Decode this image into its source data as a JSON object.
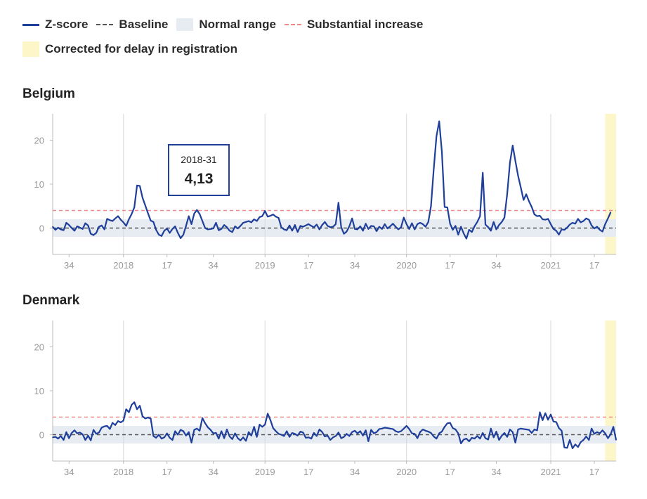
{
  "legend": {
    "zscore": "Z-score",
    "baseline": "Baseline",
    "normal_range": "Normal range",
    "substantial_increase": "Substantial increase",
    "corrected": "Corrected for delay in registration"
  },
  "colors": {
    "zscore": "#1f3f9b",
    "baseline": "#555555",
    "normal_range": "#e7ecf2",
    "substantial": "#ef8a8a",
    "corrected": "#fdf6c8",
    "grid": "#d9d9d9",
    "axis_text": "#999999"
  },
  "tooltip": {
    "label": "2018-31",
    "value": "4,13"
  },
  "chart_data": [
    {
      "type": "line",
      "title": "Belgium",
      "x_unit": "week index (week 1 = 2017-W28)",
      "x_ticks": [
        {
          "week": 7,
          "label": "34"
        },
        {
          "week": 27,
          "label": "2018"
        },
        {
          "week": 43,
          "label": "17"
        },
        {
          "week": 60,
          "label": "34"
        },
        {
          "week": 79,
          "label": "2019"
        },
        {
          "week": 95,
          "label": "17"
        },
        {
          "week": 112,
          "label": "34"
        },
        {
          "week": 131,
          "label": "2020"
        },
        {
          "week": 147,
          "label": "17"
        },
        {
          "week": 164,
          "label": "34"
        },
        {
          "week": 184,
          "label": "2021"
        },
        {
          "week": 200,
          "label": "17"
        }
      ],
      "y_ticks": [
        0,
        10,
        20
      ],
      "ylim": [
        -6,
        26
      ],
      "xlim": [
        1,
        208
      ],
      "normal_range": [
        -2,
        2
      ],
      "baseline": 0,
      "substantial_increase": 4,
      "corrected_from_week": 204,
      "grid": true,
      "series": [
        {
          "name": "Z-score",
          "values": [
            0.3,
            -0.4,
            0.1,
            -0.3,
            -0.5,
            1.2,
            0.7,
            0.0,
            -0.6,
            0.4,
            0.1,
            -0.2,
            1.1,
            0.6,
            -1.3,
            -1.6,
            -1.1,
            0.3,
            0.6,
            -0.3,
            2.1,
            1.8,
            1.6,
            2.2,
            2.7,
            1.9,
            1.3,
            0.5,
            2.0,
            3.2,
            4.7,
            9.7,
            9.6,
            6.9,
            5.2,
            3.4,
            1.7,
            1.4,
            -0.4,
            -1.5,
            -1.8,
            -0.6,
            -0.1,
            -1.1,
            -0.2,
            0.4,
            -1.1,
            -2.3,
            -1.5,
            0.5,
            2.7,
            0.9,
            3.3,
            4.13,
            3.2,
            1.6,
            0.0,
            -0.3,
            -0.2,
            -0.1,
            1.2,
            -0.5,
            -0.2,
            0.7,
            0.2,
            -0.6,
            -0.9,
            0.4,
            -0.1,
            0.5,
            1.2,
            1.4,
            1.6,
            1.3,
            2.0,
            1.6,
            2.5,
            2.7,
            3.9,
            2.6,
            2.8,
            3.1,
            2.6,
            2.3,
            0.2,
            -0.3,
            -0.5,
            0.6,
            -0.6,
            0.7,
            -0.9,
            0.5,
            0.3,
            0.6,
            0.9,
            0.5,
            0.2,
            0.8,
            -0.3,
            0.7,
            1.4,
            0.5,
            0.2,
            0.3,
            0.9,
            5.8,
            0.2,
            -1.3,
            -0.8,
            0.4,
            2.2,
            -0.2,
            -0.3,
            0.4,
            -0.6,
            1.0,
            -0.2,
            0.5,
            0.4,
            -0.7,
            0.3,
            -0.2,
            0.9,
            -0.1,
            0.4,
            1.0,
            0.3,
            -0.3,
            0.2,
            2.4,
            0.9,
            -0.2,
            1.1,
            -0.3,
            0.9,
            1.2,
            0.9,
            0.3,
            1.4,
            5.0,
            13.4,
            20.9,
            24.3,
            17.4,
            4.8,
            4.7,
            1.0,
            -0.4,
            0.5,
            -1.5,
            0.3,
            -1.2,
            -2.4,
            -0.4,
            -0.9,
            0.4,
            1.4,
            2.7,
            12.6,
            0.8,
            0.2,
            -0.6,
            1.4,
            -0.3,
            0.7,
            1.4,
            2.4,
            7.8,
            14.9,
            18.8,
            15.3,
            11.9,
            9.2,
            6.4,
            7.7,
            6.1,
            4.8,
            3.1,
            2.7,
            2.8,
            2.0,
            1.9,
            2.1,
            0.9,
            -0.2,
            -0.6,
            -1.5,
            -0.3,
            -0.4,
            0.1,
            0.8,
            1.2,
            1.0,
            2.1,
            1.3,
            1.6,
            2.2,
            1.9,
            0.6,
            -0.1,
            0.3,
            -0.4,
            -0.8,
            0.9,
            2.2,
            3.6
          ]
        }
      ]
    },
    {
      "type": "line",
      "title": "Denmark",
      "x_unit": "week index (week 1 = 2017-W28)",
      "x_ticks": [
        {
          "week": 7,
          "label": "34"
        },
        {
          "week": 27,
          "label": "2018"
        },
        {
          "week": 43,
          "label": "17"
        },
        {
          "week": 60,
          "label": "34"
        },
        {
          "week": 79,
          "label": "2019"
        },
        {
          "week": 95,
          "label": "17"
        },
        {
          "week": 112,
          "label": "34"
        },
        {
          "week": 131,
          "label": "2020"
        },
        {
          "week": 147,
          "label": "17"
        },
        {
          "week": 164,
          "label": "34"
        },
        {
          "week": 184,
          "label": "2021"
        },
        {
          "week": 200,
          "label": "17"
        }
      ],
      "y_ticks": [
        0,
        10,
        20
      ],
      "ylim": [
        -6,
        26
      ],
      "xlim": [
        1,
        208
      ],
      "normal_range": [
        -2,
        2
      ],
      "baseline": 0,
      "substantial_increase": 4,
      "corrected_from_week": 204,
      "grid": true,
      "series": [
        {
          "name": "Z-score",
          "values": [
            -0.6,
            -0.5,
            -0.9,
            -0.3,
            -1.2,
            0.6,
            -0.8,
            0.4,
            1.0,
            0.3,
            0.5,
            0.1,
            -1.2,
            -0.2,
            -1.3,
            1.1,
            0.2,
            0.5,
            1.6,
            1.9,
            2.0,
            1.3,
            2.7,
            2.2,
            3.1,
            2.8,
            3.2,
            5.8,
            5.1,
            6.8,
            7.4,
            5.8,
            6.6,
            4.2,
            3.7,
            3.9,
            3.7,
            -0.3,
            -0.7,
            0.0,
            -0.9,
            -0.6,
            0.3,
            -0.7,
            -1.2,
            0.8,
            0.0,
            1.1,
            0.8,
            -0.2,
            0.6,
            -1.8,
            1.1,
            1.4,
            0.9,
            3.8,
            2.6,
            1.7,
            1.1,
            0.3,
            0.4,
            -0.9,
            0.8,
            -0.8,
            1.2,
            -0.4,
            -1.0,
            0.3,
            -0.8,
            -1.3,
            -0.6,
            -1.4,
            0.6,
            -0.2,
            1.8,
            -0.5,
            2.3,
            1.8,
            2.3,
            4.8,
            3.3,
            1.5,
            0.8,
            0.2,
            0.0,
            -0.3,
            0.8,
            -0.5,
            0.4,
            0.2,
            -0.2,
            0.7,
            0.5,
            -0.7,
            -0.6,
            -0.9,
            0.4,
            -0.3,
            1.2,
            0.6,
            -0.4,
            -0.2,
            -1.2,
            -0.6,
            -0.3,
            0.5,
            -0.8,
            -0.5,
            0.2,
            -0.3,
            0.6,
            0.9,
            0.3,
            0.8,
            -0.2,
            1.0,
            -1.5,
            1.1,
            0.3,
            0.6,
            1.3,
            1.4,
            1.6,
            1.5,
            1.4,
            1.3,
            0.8,
            0.6,
            0.8,
            1.4,
            2.0,
            1.3,
            0.3,
            0.2,
            -0.8,
            0.6,
            1.2,
            0.9,
            0.7,
            0.4,
            -0.4,
            -0.9,
            0.3,
            0.7,
            1.8,
            2.6,
            2.7,
            1.5,
            1.2,
            0.3,
            -2.0,
            -1.1,
            -0.9,
            -1.5,
            -0.7,
            -0.9,
            -0.3,
            -0.9,
            0.4,
            -0.8,
            -1.1,
            1.4,
            -0.6,
            0.7,
            -1.2,
            -0.2,
            0.4,
            -0.5,
            1.2,
            0.6,
            -1.8,
            1.2,
            1.4,
            1.3,
            1.2,
            1.1,
            0.4,
            1.2,
            1.0,
            5.1,
            3.3,
            4.9,
            3.4,
            4.6,
            3.0,
            2.9,
            1.5,
            0.9,
            -2.9,
            -3.0,
            -1.2,
            -3.1,
            -2.2,
            -2.8,
            -1.7,
            -1.2,
            -0.4,
            -1.2,
            1.4,
            0.2,
            0.6,
            0.3,
            1.0,
            0.3,
            -0.8,
            0.1,
            1.8,
            -1.2
          ]
        }
      ]
    }
  ]
}
